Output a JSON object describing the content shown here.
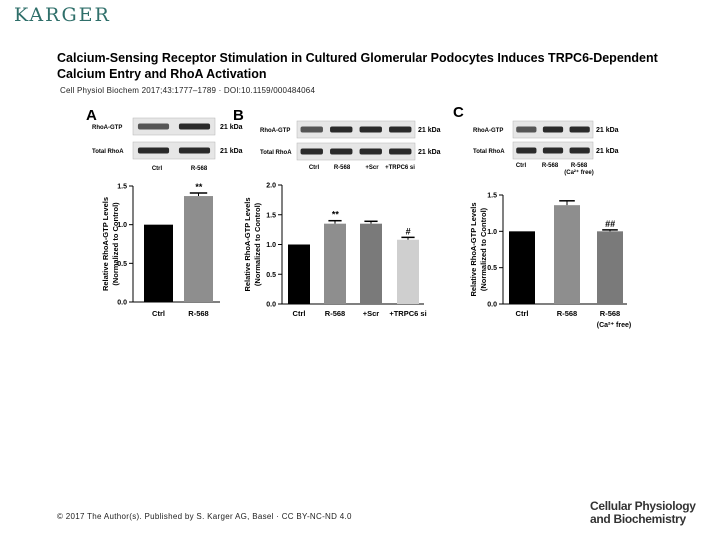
{
  "publisher": "KARGER",
  "title": "Calcium-Sensing Receptor Stimulation in Cultured Glomerular Podocytes Induces TRPC6-Dependent Calcium Entry and RhoA Activation",
  "citation": "Cell Physiol Biochem 2017;43:1777–1789 · DOI:10.1159/000484064",
  "footer": "© 2017 The Author(s). Published by S. Karger AG, Basel · CC BY-NC-ND 4.0",
  "journal": {
    "line1": "Cellular Physiology",
    "line2": "and Biochemistry"
  },
  "colors": {
    "black_bar": "#000000",
    "gray_bar": "#8e8e8e",
    "dark_gray_bar": "#7a7a7a",
    "light_bar": "#cfcfcf"
  },
  "chart_data": [
    {
      "panel": "A",
      "type": "bar",
      "categories": [
        "Ctrl",
        "R-568"
      ],
      "values": [
        1.0,
        1.37
      ],
      "errors": [
        0,
        0.04
      ],
      "significance": [
        "",
        "**"
      ],
      "ylabel": "Relative RhoA-GTP Levels (Normalized to Control)",
      "ylim": [
        0,
        1.5
      ],
      "yticks": [
        "0.0",
        "0.5",
        "1.0",
        "1.5"
      ],
      "blot": {
        "rows": [
          "RhoA-GTP",
          "Total RhoA"
        ],
        "size": "21 kDa",
        "lanes": [
          "Ctrl",
          "R-568"
        ]
      }
    },
    {
      "panel": "B",
      "type": "bar",
      "categories": [
        "Ctrl",
        "R-568",
        "+Scr",
        "+TRPC6 si"
      ],
      "values": [
        1.0,
        1.35,
        1.35,
        1.08
      ],
      "errors": [
        0,
        0.05,
        0.04,
        0.04
      ],
      "significance": [
        "",
        "**",
        "",
        "#"
      ],
      "ylabel": "Relative RhoA-GTP Levels (Normalized to Control)",
      "ylim": [
        0,
        2.0
      ],
      "yticks": [
        "0.0",
        "0.5",
        "1.0",
        "1.5",
        "2.0"
      ],
      "blot": {
        "rows": [
          "RhoA-GTP",
          "Total RhoA"
        ],
        "size": "21 kDa",
        "lanes": [
          "Ctrl",
          "R-568",
          "+Scr",
          "+TRPC6 si"
        ]
      }
    },
    {
      "panel": "C",
      "type": "bar",
      "categories": [
        "Ctrl",
        "R-568",
        "R-568"
      ],
      "sublabels": [
        "",
        "",
        "(Ca²⁺ free)"
      ],
      "values": [
        1.0,
        1.36,
        1.0
      ],
      "errors": [
        0,
        0.06,
        0.02
      ],
      "significance": [
        "",
        "",
        "##"
      ],
      "ylabel": "Relative RhoA-GTP Levels (Normalized to Control)",
      "ylim": [
        0,
        1.5
      ],
      "yticks": [
        "0.0",
        "0.5",
        "1.0",
        "1.5"
      ],
      "blot": {
        "rows": [
          "RhoA-GTP",
          "Total RhoA"
        ],
        "size": "21 kDa",
        "lanes": [
          "Ctrl",
          "R-568",
          "R-568"
        ],
        "lane_sub": [
          "",
          "",
          "(Ca²⁺ free)"
        ]
      }
    }
  ]
}
